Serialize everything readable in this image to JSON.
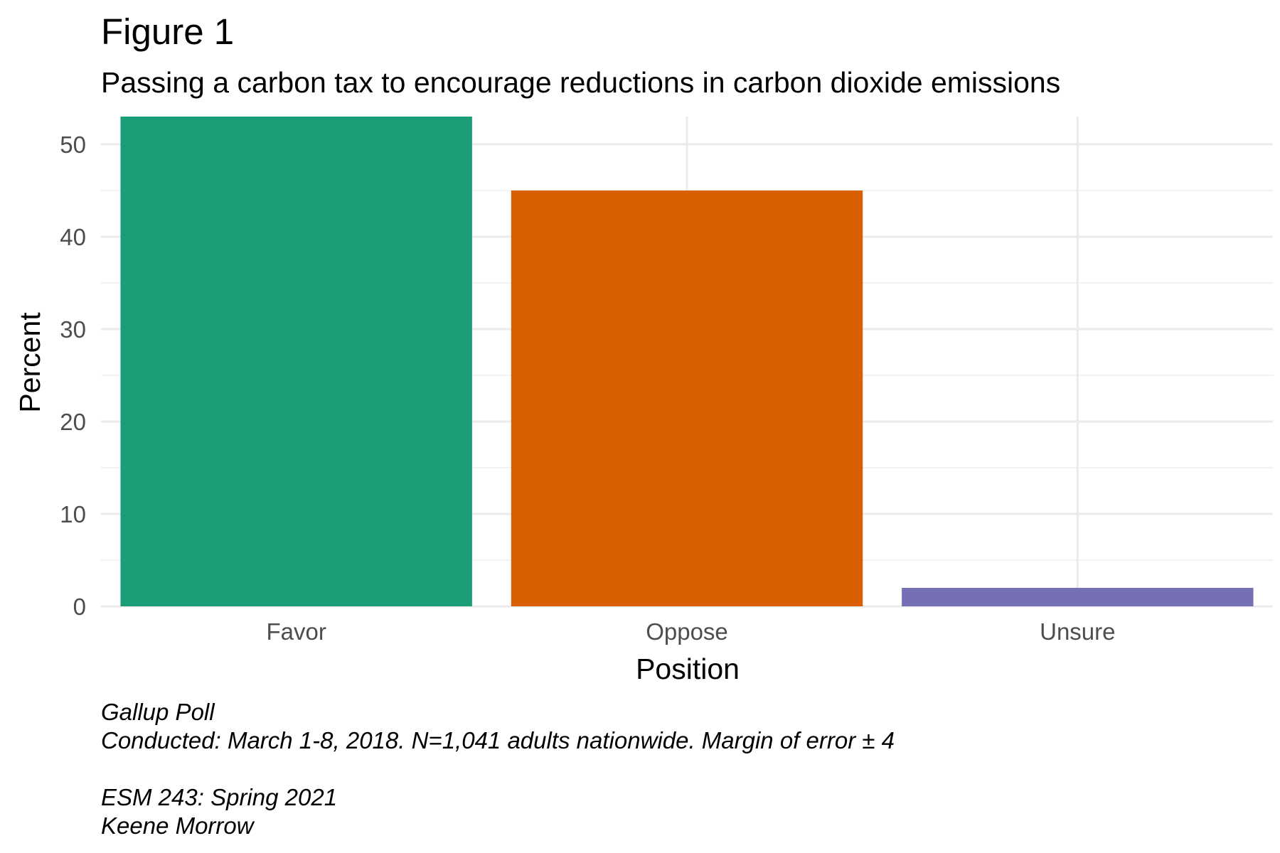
{
  "chart_data": {
    "type": "bar",
    "title": "Figure 1",
    "subtitle": "Passing a carbon tax to encourage reductions in carbon dioxide emissions",
    "xlabel": "Position",
    "ylabel": "Percent",
    "categories": [
      "Favor",
      "Oppose",
      "Unsure"
    ],
    "values": [
      53,
      45,
      2
    ],
    "colors": [
      "#1b9e77",
      "#d95f02",
      "#7570b3"
    ],
    "ylim": [
      0,
      53
    ],
    "yticks": [
      0,
      10,
      20,
      30,
      40,
      50
    ],
    "grid": true,
    "legend": "none",
    "caption": [
      "Gallup Poll",
      "Conducted: March 1-8, 2018. N=1,041 adults nationwide. Margin of error ± 4",
      "",
      "ESM 243: Spring 2021",
      "Keene Morrow"
    ]
  }
}
